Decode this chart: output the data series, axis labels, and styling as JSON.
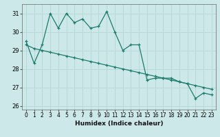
{
  "xlabel": "Humidex (Indice chaleur)",
  "ylabel": "",
  "bg_color": "#cce8e8",
  "grid_color": "#b8d8d8",
  "line_color": "#1a7a6a",
  "x_values_line1": [
    0,
    1,
    2,
    3,
    4,
    5,
    6,
    7,
    8,
    9,
    10,
    11,
    12,
    13,
    14,
    15,
    16,
    17,
    18,
    19,
    20,
    21,
    22,
    23
  ],
  "y_values_line1": [
    29.5,
    28.3,
    29.3,
    31.0,
    30.2,
    31.0,
    30.5,
    30.7,
    30.2,
    30.3,
    31.1,
    30.0,
    29.0,
    29.3,
    29.3,
    27.4,
    27.5,
    27.5,
    27.5,
    27.3,
    27.2,
    26.4,
    26.7,
    26.6
  ],
  "x_values_line2": [
    0,
    1,
    2,
    3,
    4,
    5,
    6,
    7,
    8,
    9,
    10,
    11,
    12,
    13,
    14,
    15,
    16,
    17,
    18,
    19,
    20,
    21,
    22,
    23
  ],
  "y_values_line2": [
    29.3,
    29.1,
    29.0,
    28.9,
    28.8,
    28.7,
    28.6,
    28.5,
    28.4,
    28.3,
    28.2,
    28.1,
    28.0,
    27.9,
    27.8,
    27.7,
    27.6,
    27.5,
    27.4,
    27.3,
    27.2,
    27.1,
    27.0,
    26.9
  ],
  "ylim": [
    25.8,
    31.5
  ],
  "xlim": [
    -0.5,
    23.5
  ],
  "yticks": [
    26,
    27,
    28,
    29,
    30,
    31
  ],
  "xticks": [
    0,
    1,
    2,
    3,
    4,
    5,
    6,
    7,
    8,
    9,
    10,
    11,
    12,
    13,
    14,
    15,
    16,
    17,
    18,
    19,
    20,
    21,
    22,
    23
  ],
  "xlabel_fontsize": 6.5,
  "tick_fontsize": 6,
  "linewidth": 0.9,
  "markersize": 3.5
}
